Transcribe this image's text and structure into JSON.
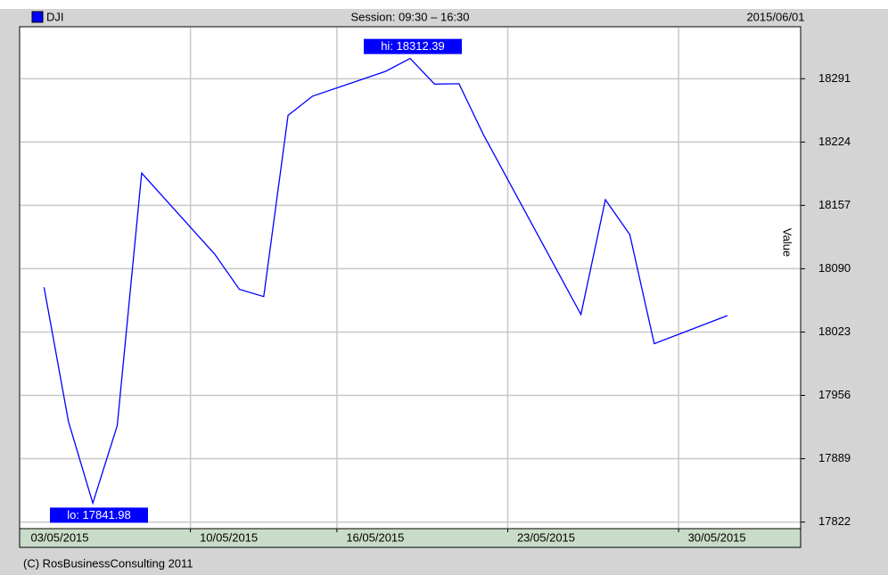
{
  "chart_data": {
    "type": "line",
    "legend": "DJI",
    "session": "Session: 09:30 – 16:30",
    "date": "2015/06/01",
    "ylabel": "Value",
    "footer": "(C) RosBusinessConsulting 2011",
    "annotations": [
      "hi: 18312.39",
      "lo: 17841.98"
    ],
    "x": [
      "2015-05-04",
      "2015-05-05",
      "2015-05-06",
      "2015-05-07",
      "2015-05-08",
      "2015-05-11",
      "2015-05-12",
      "2015-05-13",
      "2015-05-14",
      "2015-05-15",
      "2015-05-18",
      "2015-05-19",
      "2015-05-20",
      "2015-05-21",
      "2015-05-22",
      "2015-05-26",
      "2015-05-27",
      "2015-05-28",
      "2015-05-29",
      "2015-06-01"
    ],
    "series": [
      {
        "name": "DJI",
        "color": "#0000ff",
        "values": [
          18070.4,
          17928.2,
          17841.98,
          17924.06,
          18191.11,
          18105.17,
          18068.23,
          18060.49,
          18252.24,
          18272.56,
          18298.88,
          18312.39,
          18285.4,
          18285.74,
          18232.02,
          18041.54,
          18162.99,
          18126.12,
          18010.68,
          18040.37
        ]
      }
    ],
    "xlim": [
      "2015-05-03",
      "2015-06-04"
    ],
    "xticks": [
      {
        "value": "2015-05-03",
        "label": "03/05/2015"
      },
      {
        "value": "2015-05-10",
        "label": "10/05/2015"
      },
      {
        "value": "2015-05-16",
        "label": "16/05/2015"
      },
      {
        "value": "2015-05-23",
        "label": "23/05/2015"
      },
      {
        "value": "2015-05-30",
        "label": "30/05/2015"
      }
    ],
    "ylim": [
      17815,
      18346
    ],
    "yticks": [
      17822,
      17889,
      17956,
      18023,
      18090,
      18157,
      18224,
      18291
    ],
    "grid": true
  }
}
